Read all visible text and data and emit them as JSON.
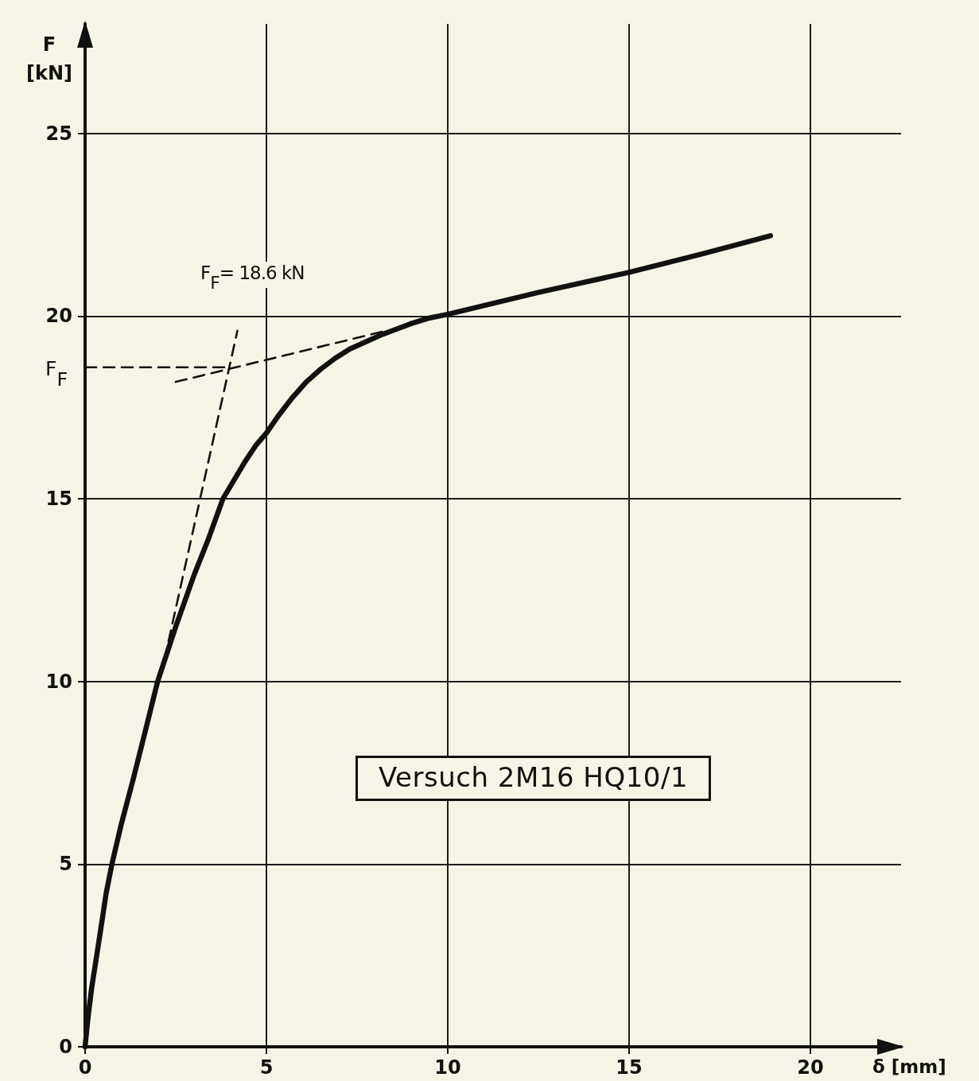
{
  "chart_data": {
    "type": "line",
    "xlabel": "δ [mm]",
    "ylabel": "F [kN]",
    "xlim": [
      0,
      22.5
    ],
    "ylim": [
      0,
      28
    ],
    "xticks": [
      0,
      5,
      10,
      15,
      20
    ],
    "yticks": [
      0,
      5,
      10,
      15,
      20,
      25
    ],
    "grid": true,
    "marker": "none",
    "line_style": "solid",
    "series": [
      {
        "color": "#111111",
        "x": [
          0,
          0.08,
          0.18,
          0.32,
          0.46,
          0.58,
          0.74,
          1.0,
          1.32,
          1.65,
          2.0,
          2.5,
          3.0,
          3.4,
          3.8,
          4.1,
          4.4,
          4.7,
          5.0,
          5.35,
          5.7,
          6.1,
          6.5,
          6.9,
          7.3,
          7.75,
          8.2,
          8.6,
          9.0,
          9.5,
          10,
          12.5,
          15,
          17,
          18.9
        ],
        "values": [
          0,
          0.8,
          1.6,
          2.5,
          3.4,
          4.2,
          5,
          6.1,
          7.3,
          8.6,
          10,
          11.5,
          12.9,
          13.9,
          15,
          15.5,
          16,
          16.45,
          16.8,
          17.3,
          17.75,
          18.2,
          18.55,
          18.85,
          19.1,
          19.3,
          19.5,
          19.65,
          19.8,
          19.95,
          20.05,
          20.65,
          21.2,
          21.7,
          22.2
        ]
      },
      {
        "color": "#111111",
        "line_style": "dashed",
        "x": [
          0,
          3.9
        ],
        "values": [
          18.6,
          18.6
        ]
      },
      {
        "color": "#111111",
        "line_style": "dashed",
        "x": [
          2.3,
          4.2
        ],
        "values": [
          11.1,
          19.6
        ]
      },
      {
        "color": "#111111",
        "line_style": "dashed",
        "x": [
          2.5,
          8.3
        ],
        "values": [
          18.2,
          19.6
        ]
      }
    ],
    "annotations": [
      "F$_{F}$= 18.6 kN",
      {
        "text": "F$_{F}$",
        "x": 0,
        "y": 18.6
      },
      "Versuch 2M16 HQ10/1"
    ]
  }
}
